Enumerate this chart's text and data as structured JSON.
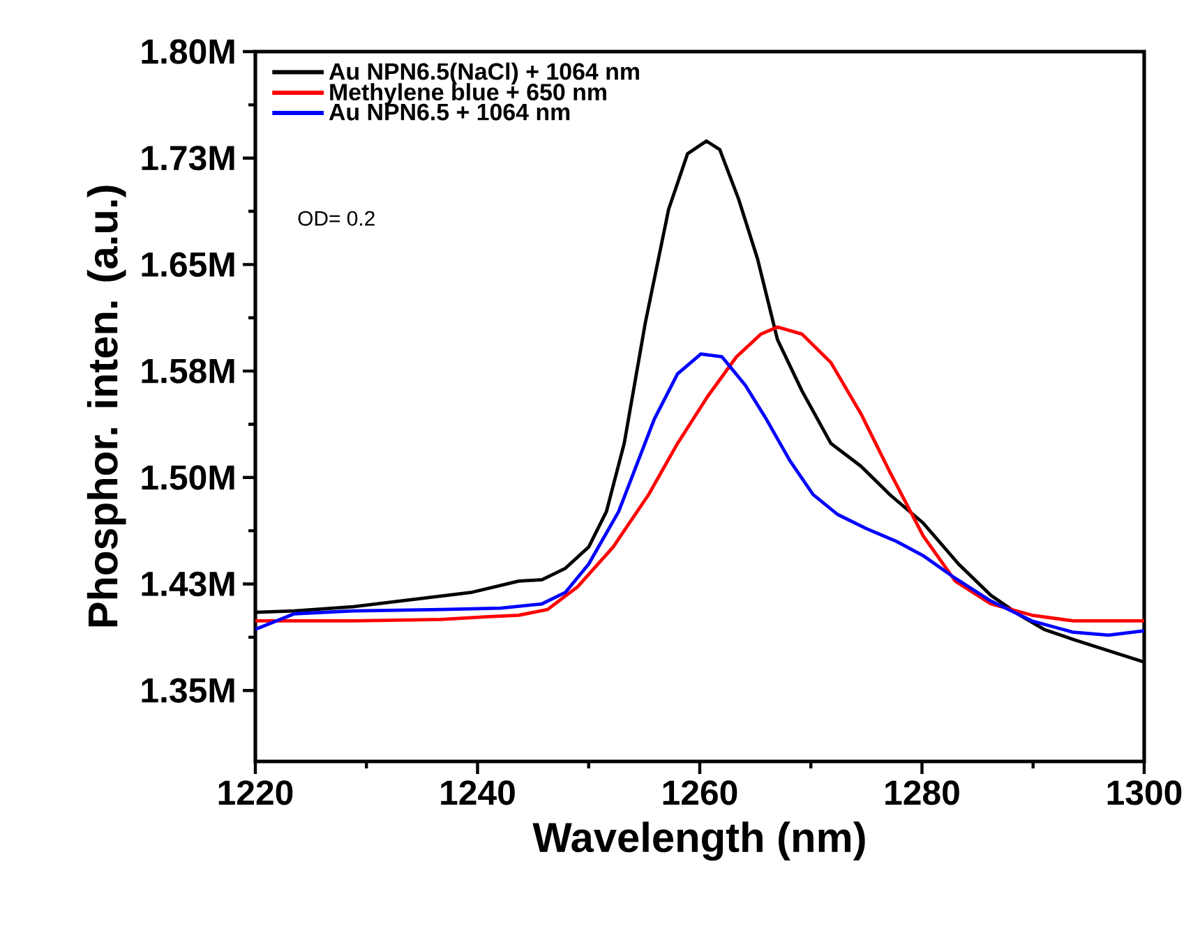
{
  "chart_data": {
    "type": "line",
    "xlabel": "Wavelength (nm)",
    "ylabel": "Phosphor. inten. (a.u.)",
    "xlim": [
      1220,
      1300
    ],
    "ylim": [
      1.3,
      1.8
    ],
    "xticks": [
      1220,
      1240,
      1260,
      1280,
      1300
    ],
    "yticks": [
      {
        "value": 1.35,
        "label": "1.35M"
      },
      {
        "value": 1.425,
        "label": "1.43M"
      },
      {
        "value": 1.5,
        "label": "1.50M"
      },
      {
        "value": 1.575,
        "label": "1.58M"
      },
      {
        "value": 1.65,
        "label": "1.65M"
      },
      {
        "value": 1.725,
        "label": "1.73M"
      },
      {
        "value": 1.8,
        "label": "1.80M"
      }
    ],
    "legend": "top left",
    "grid": false,
    "marker": "none",
    "line_style": "solid",
    "annotations": [
      "OD= 0.2"
    ],
    "series": [
      {
        "name": "Au NPN6.5(NaCl) + 1064 nm",
        "color": "#000000",
        "x": [
          1220.0,
          1223.5,
          1228.8,
          1234.1,
          1239.4,
          1243.7,
          1245.8,
          1247.9,
          1250.0,
          1251.6,
          1253.2,
          1255.1,
          1257.2,
          1258.9,
          1260.6,
          1261.8,
          1263.5,
          1265.2,
          1267.0,
          1269.2,
          1271.8,
          1274.5,
          1277.1,
          1280.1,
          1283.3,
          1286.2,
          1288.8,
          1291.0,
          1293.6,
          1296.8,
          1300.0
        ],
        "values": [
          1.405,
          1.406,
          1.409,
          1.414,
          1.419,
          1.427,
          1.428,
          1.436,
          1.451,
          1.476,
          1.524,
          1.609,
          1.689,
          1.728,
          1.737,
          1.731,
          1.696,
          1.654,
          1.597,
          1.561,
          1.524,
          1.508,
          1.488,
          1.468,
          1.439,
          1.417,
          1.403,
          1.393,
          1.386,
          1.378,
          1.37
        ]
      },
      {
        "name": "Methylene blue + 650 nm",
        "color": "#ff0000",
        "x": [
          1220.0,
          1228.8,
          1236.7,
          1241.0,
          1243.7,
          1246.3,
          1249.0,
          1252.2,
          1255.4,
          1258.0,
          1260.7,
          1263.3,
          1265.5,
          1267.0,
          1269.2,
          1271.8,
          1274.5,
          1277.1,
          1280.1,
          1283.0,
          1286.2,
          1289.9,
          1293.6,
          1300.0
        ],
        "values": [
          1.399,
          1.399,
          1.4,
          1.402,
          1.403,
          1.407,
          1.423,
          1.451,
          1.488,
          1.524,
          1.557,
          1.585,
          1.601,
          1.606,
          1.601,
          1.581,
          1.545,
          1.504,
          1.459,
          1.427,
          1.411,
          1.403,
          1.399,
          1.399
        ]
      },
      {
        "name": "Au NPN6.5 + 1064 nm",
        "color": "#0000ff",
        "x": [
          1220.0,
          1223.5,
          1228.8,
          1236.7,
          1242.1,
          1245.8,
          1247.9,
          1250.0,
          1252.7,
          1255.9,
          1258.0,
          1260.1,
          1262.0,
          1264.1,
          1266.0,
          1268.1,
          1270.2,
          1272.4,
          1275.0,
          1277.7,
          1280.1,
          1283.0,
          1286.2,
          1289.9,
          1293.6,
          1296.8,
          1300.0
        ],
        "values": [
          1.393,
          1.404,
          1.406,
          1.407,
          1.408,
          1.411,
          1.419,
          1.439,
          1.476,
          1.541,
          1.573,
          1.587,
          1.585,
          1.565,
          1.541,
          1.512,
          1.488,
          1.474,
          1.464,
          1.455,
          1.445,
          1.429,
          1.413,
          1.399,
          1.391,
          1.389,
          1.392
        ]
      }
    ]
  }
}
